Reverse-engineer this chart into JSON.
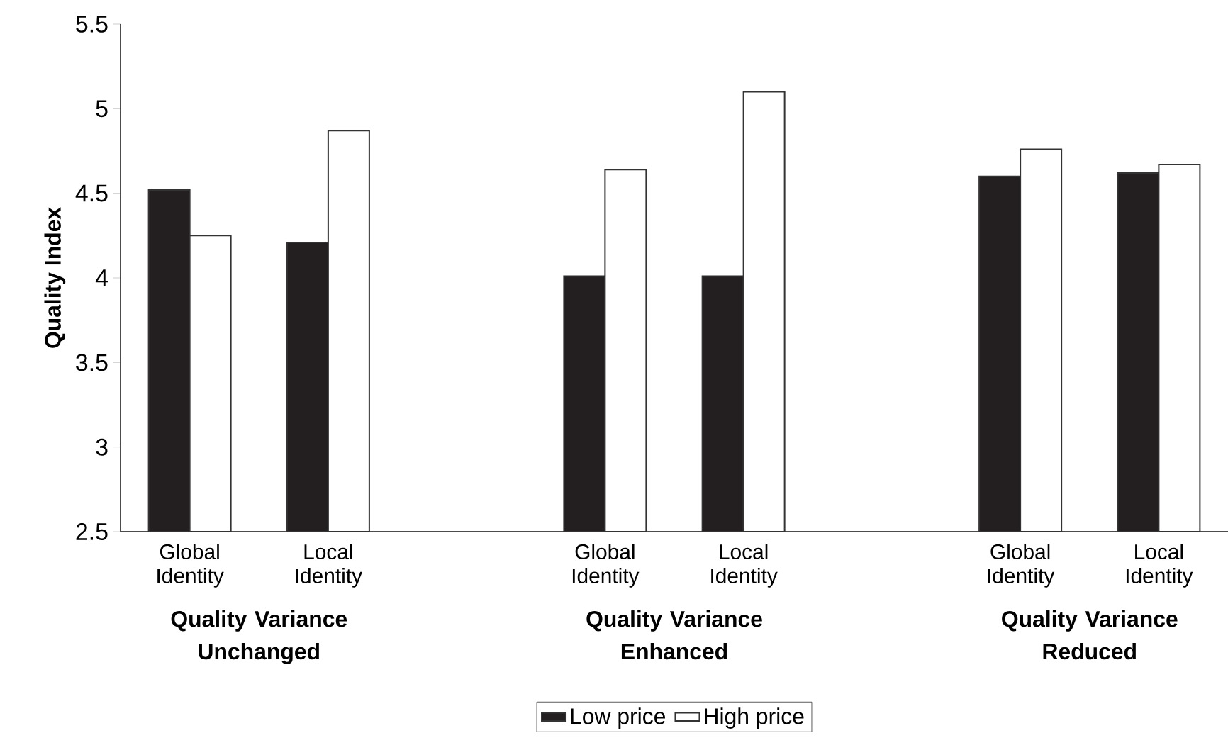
{
  "chart_data": {
    "type": "bar",
    "ylabel": "Quality Index",
    "categories": [
      "Global Identity",
      "Local Identity",
      null,
      "Global Identity",
      "Local Identity",
      null,
      "Global Identity",
      "Local Identity"
    ],
    "series": [
      {
        "name": "Low price",
        "color": "#231f20",
        "values": [
          4.52,
          4.21,
          null,
          4.01,
          4.01,
          null,
          4.6,
          4.62
        ]
      },
      {
        "name": "High price",
        "color": "#ffffff",
        "values": [
          4.25,
          4.87,
          null,
          4.64,
          5.1,
          null,
          4.76,
          4.67
        ]
      }
    ],
    "annotations": [
      "Quality Variance Unchanged",
      "Quality Variance Enhanced",
      "Quality Variance Reduced"
    ],
    "ylim": [
      2.5,
      5.5
    ],
    "yticks": [
      2.5,
      3,
      3.5,
      4,
      4.5,
      5,
      5.5
    ],
    "legend": "bottom",
    "grid": false
  }
}
